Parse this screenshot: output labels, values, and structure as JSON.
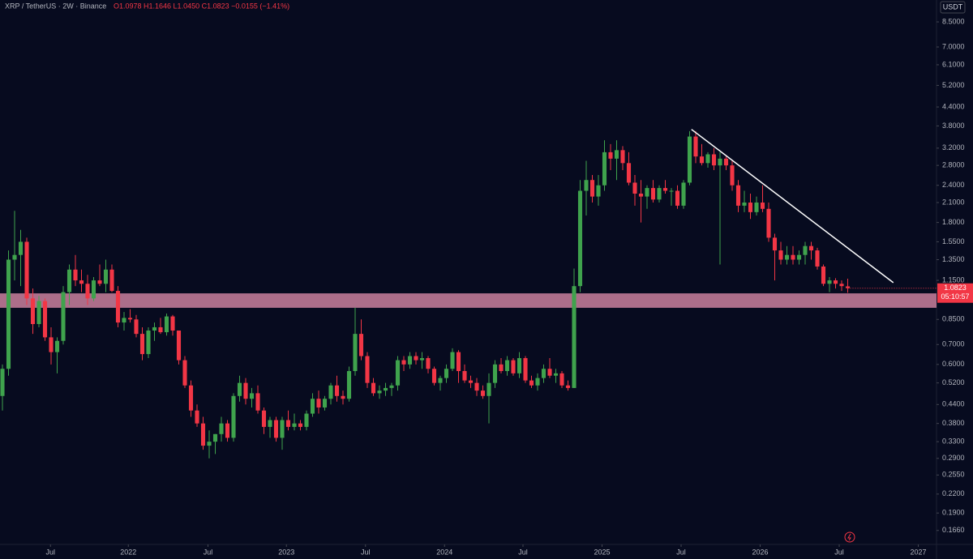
{
  "chart_data": {
    "type": "candlestick",
    "title": "XRP / TetherUS · 2W · Binance",
    "ohlc_text": "O1.0978 H1.1646 L1.0450 C1.0823 −0.0155 (−1.41%)",
    "currency": "USDT",
    "last_price_label": "1.0823",
    "countdown": "05:10:57",
    "log_scale": true,
    "up_color": "#3fa34d",
    "down_color": "#f23645",
    "open": [
      0.47,
      0.58,
      1.35,
      1.4,
      1.55,
      1.0,
      0.82,
      0.98,
      0.74,
      0.66,
      0.72,
      1.05,
      1.25,
      1.15,
      1.12,
      1.0,
      1.15,
      1.12,
      1.25,
      1.06,
      0.83,
      0.86,
      0.85,
      0.76,
      0.65,
      0.78,
      0.8,
      0.77,
      0.87,
      0.78,
      0.62,
      0.51,
      0.42,
      0.38,
      0.32,
      0.33,
      0.35,
      0.38,
      0.34,
      0.47,
      0.52,
      0.46,
      0.48,
      0.42,
      0.37,
      0.39,
      0.34,
      0.39,
      0.37,
      0.38,
      0.37,
      0.41,
      0.46,
      0.43,
      0.46,
      0.51,
      0.47,
      0.46,
      0.57,
      0.76,
      0.64,
      0.52,
      0.48,
      0.49,
      0.5,
      0.51,
      0.62,
      0.6,
      0.64,
      0.62,
      0.63,
      0.58,
      0.52,
      0.54,
      0.58,
      0.66,
      0.57,
      0.53,
      0.52,
      0.49,
      0.47,
      0.52,
      0.6,
      0.57,
      0.62,
      0.56,
      0.63,
      0.53,
      0.51,
      0.54,
      0.58,
      0.55,
      0.56,
      0.51,
      0.5,
      1.1,
      2.3,
      2.5,
      2.2,
      2.4,
      3.1,
      2.95,
      3.15,
      2.85,
      2.45,
      2.25,
      2.2,
      2.35,
      2.15,
      2.35,
      2.3,
      2.3,
      2.05,
      2.45,
      3.5,
      3.0,
      2.85,
      3.05,
      2.8,
      2.95,
      2.8,
      2.4,
      2.05,
      2.1,
      1.95,
      2.1,
      2.0,
      1.6,
      1.45,
      1.35,
      1.4,
      1.35,
      1.4,
      1.5,
      1.45,
      1.28,
      1.12,
      1.15,
      1.12,
      1.0978
    ],
    "high": [
      0.6,
      1.45,
      1.97,
      1.7,
      1.6,
      1.08,
      1.02,
      1.0,
      0.8,
      0.74,
      1.1,
      1.3,
      1.4,
      1.25,
      1.2,
      1.18,
      1.3,
      1.35,
      1.3,
      1.1,
      0.9,
      0.92,
      0.88,
      0.8,
      0.8,
      0.83,
      0.86,
      0.89,
      0.88,
      0.78,
      0.64,
      0.53,
      0.44,
      0.4,
      0.36,
      0.35,
      0.4,
      0.39,
      0.48,
      0.55,
      0.54,
      0.5,
      0.51,
      0.43,
      0.4,
      0.4,
      0.4,
      0.42,
      0.41,
      0.39,
      0.42,
      0.48,
      0.49,
      0.47,
      0.52,
      0.55,
      0.49,
      0.59,
      0.93,
      0.85,
      0.66,
      0.54,
      0.51,
      0.52,
      0.52,
      0.64,
      0.64,
      0.66,
      0.66,
      0.66,
      0.64,
      0.59,
      0.55,
      0.6,
      0.68,
      0.67,
      0.6,
      0.55,
      0.54,
      0.51,
      0.56,
      0.62,
      0.63,
      0.64,
      0.63,
      0.66,
      0.64,
      0.55,
      0.56,
      0.6,
      0.63,
      0.58,
      0.57,
      0.53,
      1.26,
      2.5,
      2.9,
      2.6,
      2.6,
      3.4,
      3.3,
      3.4,
      3.25,
      3.1,
      2.6,
      2.5,
      2.4,
      2.5,
      2.4,
      2.5,
      2.35,
      2.4,
      2.5,
      3.65,
      3.65,
      3.3,
      3.1,
      3.2,
      3.1,
      3.0,
      2.9,
      2.5,
      2.3,
      2.25,
      2.2,
      2.4,
      2.1,
      1.65,
      1.55,
      1.5,
      1.5,
      1.45,
      1.55,
      1.55,
      1.48,
      1.3,
      1.18,
      1.17,
      1.15,
      1.1646
    ],
    "low": [
      0.42,
      0.55,
      1.15,
      1.1,
      0.95,
      0.76,
      0.8,
      0.72,
      0.6,
      0.56,
      0.7,
      0.95,
      1.1,
      1.05,
      0.95,
      0.98,
      1.1,
      1.05,
      1.05,
      0.8,
      0.78,
      0.83,
      0.74,
      0.62,
      0.63,
      0.72,
      0.76,
      0.75,
      0.75,
      0.6,
      0.5,
      0.4,
      0.37,
      0.31,
      0.29,
      0.3,
      0.33,
      0.33,
      0.33,
      0.45,
      0.44,
      0.43,
      0.41,
      0.35,
      0.34,
      0.33,
      0.31,
      0.36,
      0.36,
      0.36,
      0.36,
      0.4,
      0.41,
      0.42,
      0.44,
      0.45,
      0.44,
      0.45,
      0.55,
      0.62,
      0.5,
      0.47,
      0.46,
      0.47,
      0.47,
      0.49,
      0.57,
      0.58,
      0.6,
      0.58,
      0.56,
      0.51,
      0.49,
      0.52,
      0.57,
      0.52,
      0.52,
      0.5,
      0.47,
      0.46,
      0.38,
      0.5,
      0.56,
      0.55,
      0.55,
      0.54,
      0.52,
      0.5,
      0.49,
      0.52,
      0.54,
      0.52,
      0.5,
      0.49,
      0.5,
      1.05,
      1.9,
      2.1,
      2.05,
      2.3,
      2.7,
      2.5,
      2.7,
      2.4,
      2.05,
      1.8,
      2.0,
      2.1,
      2.1,
      2.25,
      2.05,
      2.0,
      2.0,
      2.4,
      2.85,
      2.8,
      2.75,
      2.7,
      1.3,
      2.7,
      2.3,
      1.95,
      1.95,
      1.85,
      1.9,
      1.95,
      1.55,
      1.15,
      1.3,
      1.3,
      1.3,
      1.3,
      1.3,
      1.35,
      1.25,
      1.1,
      1.05,
      1.08,
      1.06,
      1.045
    ],
    "close": [
      0.58,
      1.35,
      1.4,
      1.55,
      1.0,
      0.82,
      0.98,
      0.74,
      0.66,
      0.72,
      1.05,
      1.25,
      1.15,
      1.12,
      1.0,
      1.15,
      1.12,
      1.25,
      1.06,
      0.83,
      0.86,
      0.85,
      0.76,
      0.65,
      0.78,
      0.8,
      0.77,
      0.87,
      0.78,
      0.62,
      0.51,
      0.42,
      0.38,
      0.32,
      0.33,
      0.35,
      0.38,
      0.34,
      0.47,
      0.52,
      0.46,
      0.48,
      0.42,
      0.37,
      0.39,
      0.34,
      0.39,
      0.37,
      0.38,
      0.37,
      0.41,
      0.46,
      0.43,
      0.46,
      0.51,
      0.47,
      0.46,
      0.57,
      0.76,
      0.64,
      0.52,
      0.48,
      0.49,
      0.5,
      0.51,
      0.62,
      0.6,
      0.64,
      0.62,
      0.63,
      0.58,
      0.52,
      0.54,
      0.58,
      0.66,
      0.57,
      0.53,
      0.52,
      0.49,
      0.47,
      0.52,
      0.6,
      0.57,
      0.62,
      0.56,
      0.63,
      0.53,
      0.51,
      0.54,
      0.58,
      0.55,
      0.56,
      0.51,
      0.5,
      1.1,
      2.3,
      2.5,
      2.2,
      2.4,
      3.1,
      2.95,
      3.15,
      2.85,
      2.45,
      2.25,
      2.2,
      2.35,
      2.15,
      2.35,
      2.3,
      2.3,
      2.05,
      2.45,
      3.5,
      3.0,
      2.85,
      3.05,
      2.8,
      2.95,
      2.8,
      2.4,
      2.05,
      2.1,
      1.95,
      2.1,
      2.0,
      1.6,
      1.45,
      1.35,
      1.4,
      1.35,
      1.4,
      1.5,
      1.45,
      1.28,
      1.12,
      1.15,
      1.12,
      1.1,
      1.0823
    ],
    "xlim": [
      -0.4,
      153.6
    ],
    "xticks": [
      {
        "value": 7.9,
        "label": "Jul"
      },
      {
        "value": 20.7,
        "label": "2022"
      },
      {
        "value": 33.8,
        "label": "Jul"
      },
      {
        "value": 46.7,
        "label": "2023"
      },
      {
        "value": 59.7,
        "label": "Jul"
      },
      {
        "value": 72.7,
        "label": "2024"
      },
      {
        "value": 85.6,
        "label": "Jul"
      },
      {
        "value": 98.6,
        "label": "2025"
      },
      {
        "value": 111.6,
        "label": "Jul"
      },
      {
        "value": 124.6,
        "label": "2026"
      },
      {
        "value": 137.6,
        "label": "Jul"
      },
      {
        "value": 150.6,
        "label": "2027"
      }
    ],
    "ylim": [
      0.149,
      10.07
    ],
    "yticks": [
      {
        "value": 8.5,
        "label": "8.5000"
      },
      {
        "value": 7,
        "label": "7.0000"
      },
      {
        "value": 6.1,
        "label": "6.1000"
      },
      {
        "value": 5.2,
        "label": "5.2000"
      },
      {
        "value": 4.4,
        "label": "4.4000"
      },
      {
        "value": 3.8,
        "label": "3.8000"
      },
      {
        "value": 3.2,
        "label": "3.2000"
      },
      {
        "value": 2.8,
        "label": "2.8000"
      },
      {
        "value": 2.4,
        "label": "2.4000"
      },
      {
        "value": 2.1,
        "label": "2.1000"
      },
      {
        "value": 1.8,
        "label": "1.8000"
      },
      {
        "value": 1.55,
        "label": "1.5500"
      },
      {
        "value": 1.35,
        "label": "1.3500"
      },
      {
        "value": 1.15,
        "label": "1.1500"
      },
      {
        "value": 0.85,
        "label": "0.8500"
      },
      {
        "value": 0.7,
        "label": "0.7000"
      },
      {
        "value": 0.6,
        "label": "0.6000"
      },
      {
        "value": 0.52,
        "label": "0.5200"
      },
      {
        "value": 0.44,
        "label": "0.4400"
      },
      {
        "value": 0.38,
        "label": "0.3800"
      },
      {
        "value": 0.33,
        "label": "0.3300"
      },
      {
        "value": 0.29,
        "label": "0.2900"
      },
      {
        "value": 0.255,
        "label": "0.2550"
      },
      {
        "value": 0.22,
        "label": "0.2200"
      },
      {
        "value": 0.19,
        "label": "0.1900"
      },
      {
        "value": 0.166,
        "label": "0.1660"
      }
    ],
    "zone": [
      0.93,
      1.04
    ],
    "zone_color": "#c9809d",
    "trendline": {
      "x": [
        113.3,
        146.5
      ],
      "y": [
        3.7,
        1.13
      ]
    },
    "trendline_color": "#ffffff"
  }
}
